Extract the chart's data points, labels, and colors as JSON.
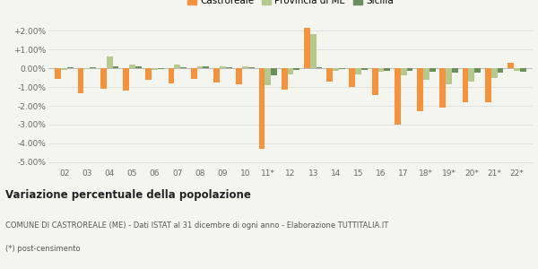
{
  "categories": [
    "02",
    "03",
    "04",
    "05",
    "06",
    "07",
    "08",
    "09",
    "10",
    "11*",
    "12",
    "13",
    "14",
    "15",
    "16",
    "17",
    "18*",
    "19*",
    "20*",
    "21*",
    "22*"
  ],
  "castroreale": [
    -0.55,
    -1.35,
    -1.1,
    -1.2,
    -0.6,
    -0.8,
    -0.55,
    -0.75,
    -0.85,
    -4.3,
    -1.15,
    2.15,
    -0.7,
    -1.0,
    -1.4,
    -3.0,
    -2.3,
    -2.1,
    -1.8,
    -1.8,
    0.3
  ],
  "provincia_me": [
    -0.1,
    -0.05,
    0.65,
    0.2,
    -0.1,
    0.2,
    0.1,
    0.1,
    0.1,
    -0.9,
    -0.3,
    1.85,
    -0.15,
    -0.3,
    -0.2,
    -0.35,
    -0.6,
    -0.85,
    -0.7,
    -0.5,
    -0.15
  ],
  "sicilia": [
    0.05,
    0.05,
    0.1,
    0.1,
    -0.05,
    0.05,
    0.1,
    0.05,
    0.05,
    -0.35,
    -0.1,
    0.05,
    -0.05,
    -0.1,
    -0.15,
    -0.15,
    -0.2,
    -0.25,
    -0.25,
    -0.25,
    -0.2
  ],
  "color_castroreale": "#f5923e",
  "color_provincia": "#b5c98e",
  "color_sicilia": "#6b8e5e",
  "title": "Variazione percentuale della popolazione",
  "subtitle": "COMUNE DI CASTROREALE (ME) - Dati ISTAT al 31 dicembre di ogni anno - Elaborazione TUTTITALIA.IT",
  "footnote": "(*) post-censimento",
  "ylim": [
    -5.25,
    2.5
  ],
  "yticks": [
    -5.0,
    -4.0,
    -3.0,
    -2.0,
    -1.0,
    0.0,
    1.0,
    2.0
  ],
  "bg_color": "#f5f5f0",
  "bar_width": 0.27
}
